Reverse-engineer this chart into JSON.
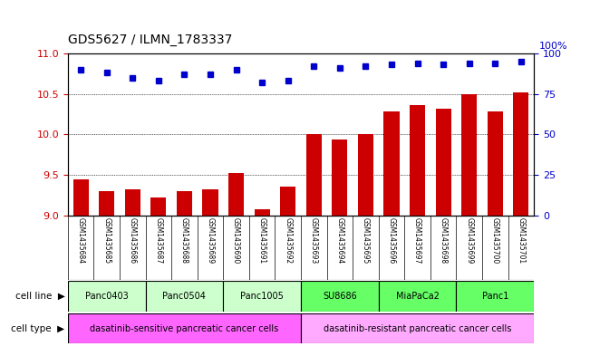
{
  "title": "GDS5627 / ILMN_1783337",
  "samples": [
    "GSM1435684",
    "GSM1435685",
    "GSM1435686",
    "GSM1435687",
    "GSM1435688",
    "GSM1435689",
    "GSM1435690",
    "GSM1435691",
    "GSM1435692",
    "GSM1435693",
    "GSM1435694",
    "GSM1435695",
    "GSM1435696",
    "GSM1435697",
    "GSM1435698",
    "GSM1435699",
    "GSM1435700",
    "GSM1435701"
  ],
  "transformed_count": [
    9.44,
    9.3,
    9.32,
    9.22,
    9.3,
    9.32,
    9.52,
    9.08,
    9.36,
    10.0,
    9.94,
    10.0,
    10.28,
    10.36,
    10.32,
    10.5,
    10.28,
    10.52
  ],
  "percentile_rank": [
    90,
    88,
    85,
    83,
    87,
    87,
    90,
    82,
    83,
    92,
    91,
    92,
    93,
    94,
    93,
    94,
    94,
    95
  ],
  "bar_color": "#cc0000",
  "dot_color": "#0000cc",
  "ylim_left": [
    9.0,
    11.0
  ],
  "ylim_right": [
    0,
    100
  ],
  "yticks_left": [
    9.0,
    9.5,
    10.0,
    10.5,
    11.0
  ],
  "yticks_right": [
    0,
    25,
    50,
    75,
    100
  ],
  "cell_lines": [
    {
      "label": "Panc0403",
      "start": 0,
      "end": 3,
      "color": "#ccffcc"
    },
    {
      "label": "Panc0504",
      "start": 3,
      "end": 6,
      "color": "#ccffcc"
    },
    {
      "label": "Panc1005",
      "start": 6,
      "end": 9,
      "color": "#ccffcc"
    },
    {
      "label": "SU8686",
      "start": 9,
      "end": 12,
      "color": "#66ff66"
    },
    {
      "label": "MiaPaCa2",
      "start": 12,
      "end": 15,
      "color": "#66ff66"
    },
    {
      "label": "Panc1",
      "start": 15,
      "end": 18,
      "color": "#66ff66"
    }
  ],
  "cell_types": [
    {
      "label": "dasatinib-sensitive pancreatic cancer cells",
      "start": 0,
      "end": 9,
      "color": "#ff66ff"
    },
    {
      "label": "dasatinib-resistant pancreatic cancer cells",
      "start": 9,
      "end": 18,
      "color": "#ffaaff"
    }
  ],
  "background_color": "#ffffff",
  "tick_label_color_left": "#cc0000",
  "tick_label_color_right": "#0000cc",
  "xtick_bg_color": "#cccccc"
}
